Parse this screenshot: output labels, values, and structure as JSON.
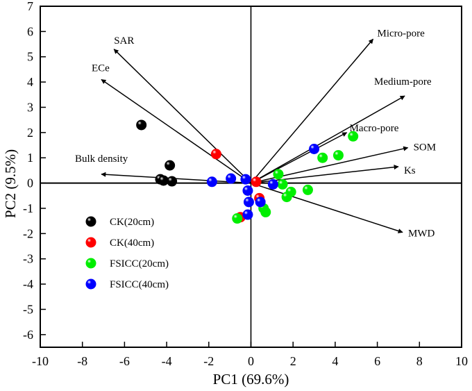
{
  "chart_data": {
    "type": "scatter",
    "subtype": "pca-biplot",
    "title": "",
    "xlabel": "PC1 (69.6%)",
    "ylabel": "PC2 (9.5%)",
    "xlim": [
      -10,
      10
    ],
    "ylim": [
      -6.5,
      7
    ],
    "xticks": [
      -10,
      -8,
      -6,
      -4,
      -2,
      0,
      2,
      4,
      6,
      8,
      10
    ],
    "yticks": [
      -6,
      -5,
      -4,
      -3,
      -2,
      -1,
      0,
      1,
      2,
      3,
      4,
      5,
      6,
      7
    ],
    "grid": false,
    "legend_position": "left-middle",
    "loadings": [
      {
        "name": "SAR",
        "x": -6.5,
        "y": 5.3
      },
      {
        "name": "ECe",
        "x": -7.1,
        "y": 4.1
      },
      {
        "name": "Bulk density",
        "x": -7.1,
        "y": 0.35
      },
      {
        "name": "Micro-pore",
        "x": 5.8,
        "y": 5.7
      },
      {
        "name": "Medium-pore",
        "x": 7.3,
        "y": 3.45
      },
      {
        "name": "Macro-pore",
        "x": 4.55,
        "y": 2.0
      },
      {
        "name": "SOM",
        "x": 7.45,
        "y": 1.4
      },
      {
        "name": "Ks",
        "x": 7.0,
        "y": 0.65
      },
      {
        "name": "MWD",
        "x": 7.2,
        "y": -1.95
      }
    ],
    "series": [
      {
        "name": "CK(20cm)",
        "color": "#000000",
        "points": [
          [
            -5.2,
            2.3
          ],
          [
            -3.85,
            0.7
          ],
          [
            -4.3,
            0.15
          ],
          [
            -4.15,
            0.1
          ],
          [
            -3.75,
            0.07
          ]
        ]
      },
      {
        "name": "CK(40cm)",
        "color": "#ff0000",
        "points": [
          [
            -1.65,
            1.15
          ],
          [
            0.25,
            0.05
          ],
          [
            0.4,
            -0.6
          ],
          [
            -0.5,
            -1.35
          ]
        ]
      },
      {
        "name": "FSICC(20cm)",
        "color": "#00ee00",
        "points": [
          [
            1.3,
            0.35
          ],
          [
            1.5,
            -0.05
          ],
          [
            1.9,
            -0.35
          ],
          [
            1.7,
            -0.55
          ],
          [
            2.7,
            -0.27
          ],
          [
            3.4,
            1.0
          ],
          [
            4.15,
            1.1
          ],
          [
            4.85,
            1.85
          ],
          [
            0.7,
            -1.15
          ],
          [
            -0.65,
            -1.4
          ],
          [
            0.6,
            -1.0
          ]
        ]
      },
      {
        "name": "FSICC(40cm)",
        "color": "#0000ff",
        "points": [
          [
            -1.85,
            0.05
          ],
          [
            -0.95,
            0.18
          ],
          [
            -0.25,
            0.15
          ],
          [
            -0.15,
            -0.3
          ],
          [
            -0.1,
            -0.75
          ],
          [
            0.45,
            -0.75
          ],
          [
            -0.15,
            -1.25
          ],
          [
            1.05,
            -0.05
          ],
          [
            3.0,
            1.35
          ]
        ]
      }
    ]
  }
}
